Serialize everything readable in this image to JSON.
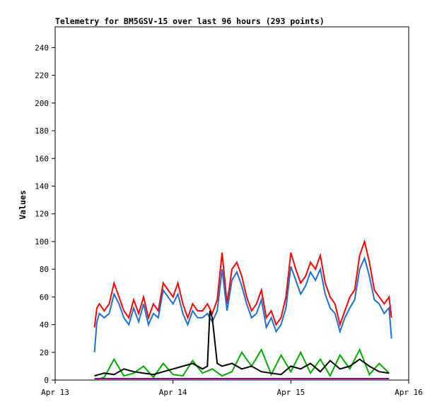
{
  "chart_data": {
    "type": "line",
    "title": "Telemetry for BM5GSV-15 over last 96 hours (293 points)",
    "xlabel": "",
    "ylabel": "Values",
    "x_ticks": [
      "Apr 13",
      "Apr 14",
      "Apr 15",
      "Apr 16"
    ],
    "x_range": [
      "2024-04-13T00:00",
      "2024-04-16T00:00"
    ],
    "y_ticks": [
      0,
      20,
      40,
      60,
      80,
      100,
      120,
      140,
      160,
      180,
      200,
      220,
      240
    ],
    "ylim": [
      0,
      255
    ],
    "grid": false,
    "legend": "none",
    "series": [
      {
        "color": "#ff0000",
        "x": [
          "2024-04-13T08:00",
          "2024-04-13T08:30",
          "2024-04-13T09:00",
          "2024-04-13T10:00",
          "2024-04-13T11:00",
          "2024-04-13T12:00",
          "2024-04-13T13:00",
          "2024-04-13T14:00",
          "2024-04-13T15:00",
          "2024-04-13T16:00",
          "2024-04-13T17:00",
          "2024-04-13T18:00",
          "2024-04-13T19:00",
          "2024-04-13T20:00",
          "2024-04-13T21:00",
          "2024-04-13T22:00",
          "2024-04-13T23:00",
          "2024-04-14T00:00",
          "2024-04-14T01:00",
          "2024-04-14T02:00",
          "2024-04-14T03:00",
          "2024-04-14T04:00",
          "2024-04-14T05:00",
          "2024-04-14T06:00",
          "2024-04-14T07:00",
          "2024-04-14T08:00",
          "2024-04-14T09:00",
          "2024-04-14T10:00",
          "2024-04-14T11:00",
          "2024-04-14T12:00",
          "2024-04-14T13:00",
          "2024-04-14T14:00",
          "2024-04-14T15:00",
          "2024-04-14T16:00",
          "2024-04-14T17:00",
          "2024-04-14T18:00",
          "2024-04-14T19:00",
          "2024-04-14T20:00",
          "2024-04-14T21:00",
          "2024-04-14T22:00",
          "2024-04-14T23:00",
          "2024-04-15T00:00",
          "2024-04-15T01:00",
          "2024-04-15T02:00",
          "2024-04-15T03:00",
          "2024-04-15T04:00",
          "2024-04-15T05:00",
          "2024-04-15T06:00",
          "2024-04-15T07:00",
          "2024-04-15T08:00",
          "2024-04-15T09:00",
          "2024-04-15T10:00",
          "2024-04-15T11:00",
          "2024-04-15T12:00",
          "2024-04-15T13:00",
          "2024-04-15T14:00",
          "2024-04-15T15:00",
          "2024-04-15T16:00",
          "2024-04-15T17:00",
          "2024-04-15T18:00",
          "2024-04-15T19:00",
          "2024-04-15T20:00",
          "2024-04-15T20:30"
        ],
        "values": [
          38,
          52,
          55,
          50,
          55,
          70,
          60,
          50,
          45,
          58,
          48,
          60,
          45,
          55,
          50,
          70,
          65,
          60,
          70,
          55,
          45,
          55,
          50,
          50,
          55,
          48,
          58,
          92,
          55,
          80,
          85,
          75,
          60,
          50,
          55,
          65,
          45,
          50,
          40,
          45,
          60,
          92,
          80,
          70,
          75,
          85,
          80,
          90,
          70,
          60,
          55,
          40,
          50,
          60,
          65,
          90,
          100,
          85,
          65,
          60,
          55,
          60,
          45
        ]
      },
      {
        "color": "#1e6fcf",
        "x": [
          "2024-04-13T08:00",
          "2024-04-13T08:30",
          "2024-04-13T09:00",
          "2024-04-13T10:00",
          "2024-04-13T11:00",
          "2024-04-13T12:00",
          "2024-04-13T13:00",
          "2024-04-13T14:00",
          "2024-04-13T15:00",
          "2024-04-13T16:00",
          "2024-04-13T17:00",
          "2024-04-13T18:00",
          "2024-04-13T19:00",
          "2024-04-13T20:00",
          "2024-04-13T21:00",
          "2024-04-13T22:00",
          "2024-04-13T23:00",
          "2024-04-14T00:00",
          "2024-04-14T01:00",
          "2024-04-14T02:00",
          "2024-04-14T03:00",
          "2024-04-14T04:00",
          "2024-04-14T05:00",
          "2024-04-14T06:00",
          "2024-04-14T07:00",
          "2024-04-14T08:00",
          "2024-04-14T09:00",
          "2024-04-14T10:00",
          "2024-04-14T11:00",
          "2024-04-14T12:00",
          "2024-04-14T13:00",
          "2024-04-14T14:00",
          "2024-04-14T15:00",
          "2024-04-14T16:00",
          "2024-04-14T17:00",
          "2024-04-14T18:00",
          "2024-04-14T19:00",
          "2024-04-14T20:00",
          "2024-04-14T21:00",
          "2024-04-14T22:00",
          "2024-04-14T23:00",
          "2024-04-15T00:00",
          "2024-04-15T01:00",
          "2024-04-15T02:00",
          "2024-04-15T03:00",
          "2024-04-15T04:00",
          "2024-04-15T05:00",
          "2024-04-15T06:00",
          "2024-04-15T07:00",
          "2024-04-15T08:00",
          "2024-04-15T09:00",
          "2024-04-15T10:00",
          "2024-04-15T11:00",
          "2024-04-15T12:00",
          "2024-04-15T13:00",
          "2024-04-15T14:00",
          "2024-04-15T15:00",
          "2024-04-15T16:00",
          "2024-04-15T17:00",
          "2024-04-15T18:00",
          "2024-04-15T19:00",
          "2024-04-15T20:00",
          "2024-04-15T20:30"
        ],
        "values": [
          20,
          42,
          48,
          45,
          48,
          62,
          55,
          45,
          40,
          52,
          42,
          55,
          40,
          48,
          45,
          65,
          60,
          55,
          62,
          48,
          40,
          50,
          45,
          45,
          48,
          42,
          50,
          80,
          50,
          72,
          78,
          68,
          55,
          45,
          48,
          58,
          38,
          45,
          35,
          40,
          52,
          82,
          72,
          62,
          68,
          78,
          72,
          80,
          62,
          52,
          48,
          35,
          45,
          52,
          58,
          80,
          88,
          75,
          58,
          55,
          48,
          52,
          30
        ]
      },
      {
        "color": "#00aa00",
        "x": [
          "2024-04-13T08:00",
          "2024-04-13T10:00",
          "2024-04-13T12:00",
          "2024-04-13T14:00",
          "2024-04-13T16:00",
          "2024-04-13T18:00",
          "2024-04-13T20:00",
          "2024-04-13T22:00",
          "2024-04-14T00:00",
          "2024-04-14T02:00",
          "2024-04-14T04:00",
          "2024-04-14T06:00",
          "2024-04-14T08:00",
          "2024-04-14T10:00",
          "2024-04-14T12:00",
          "2024-04-14T14:00",
          "2024-04-14T16:00",
          "2024-04-14T18:00",
          "2024-04-14T20:00",
          "2024-04-14T22:00",
          "2024-04-15T00:00",
          "2024-04-15T02:00",
          "2024-04-15T04:00",
          "2024-04-15T06:00",
          "2024-04-15T08:00",
          "2024-04-15T10:00",
          "2024-04-15T12:00",
          "2024-04-15T14:00",
          "2024-04-15T16:00",
          "2024-04-15T18:00",
          "2024-04-15T20:00"
        ],
        "values": [
          0,
          2,
          15,
          3,
          5,
          10,
          2,
          12,
          4,
          3,
          14,
          5,
          8,
          3,
          6,
          20,
          10,
          22,
          4,
          18,
          6,
          20,
          5,
          15,
          3,
          18,
          8,
          22,
          4,
          12,
          5
        ]
      },
      {
        "color": "#000000",
        "x": [
          "2024-04-13T08:00",
          "2024-04-13T10:00",
          "2024-04-13T12:00",
          "2024-04-13T14:00",
          "2024-04-13T16:00",
          "2024-04-13T18:00",
          "2024-04-13T20:00",
          "2024-04-13T22:00",
          "2024-04-14T00:00",
          "2024-04-14T02:00",
          "2024-04-14T04:00",
          "2024-04-14T06:00",
          "2024-04-14T07:00",
          "2024-04-14T07:30",
          "2024-04-14T08:00",
          "2024-04-14T09:00",
          "2024-04-14T10:00",
          "2024-04-14T12:00",
          "2024-04-14T14:00",
          "2024-04-14T16:00",
          "2024-04-14T18:00",
          "2024-04-14T20:00",
          "2024-04-14T22:00",
          "2024-04-15T00:00",
          "2024-04-15T02:00",
          "2024-04-15T04:00",
          "2024-04-15T06:00",
          "2024-04-15T08:00",
          "2024-04-15T10:00",
          "2024-04-15T12:00",
          "2024-04-15T14:00",
          "2024-04-15T16:00",
          "2024-04-15T18:00",
          "2024-04-15T20:00"
        ],
        "values": [
          3,
          5,
          4,
          8,
          6,
          5,
          4,
          6,
          8,
          10,
          12,
          8,
          10,
          50,
          45,
          12,
          10,
          12,
          8,
          10,
          6,
          5,
          4,
          10,
          8,
          12,
          6,
          14,
          8,
          10,
          15,
          10,
          6,
          5
        ]
      },
      {
        "color": "#990099",
        "x": [
          "2024-04-13T08:00",
          "2024-04-14T00:00",
          "2024-04-14T12:00",
          "2024-04-15T00:00",
          "2024-04-15T20:00"
        ],
        "values": [
          1,
          1,
          1,
          1,
          1
        ]
      }
    ]
  }
}
